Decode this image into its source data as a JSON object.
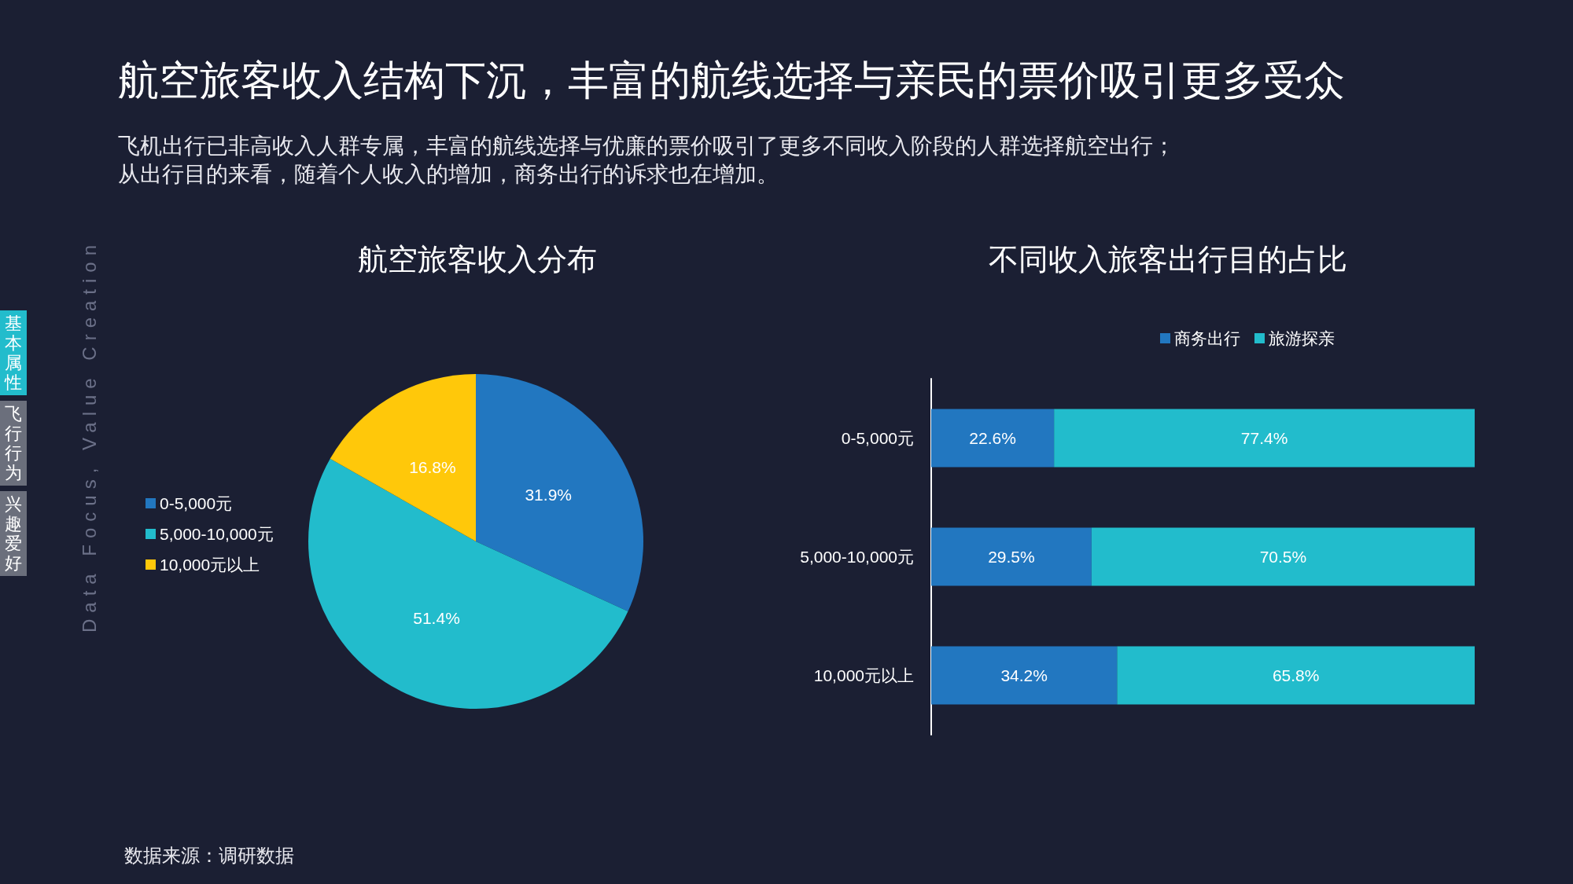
{
  "chart_data": [
    {
      "type": "other",
      "title": "航空旅客收入结构下沉，丰富的航线选择与亲民的票价吸引更多受众",
      "subtitle": "飞机出行已非高收入人群专属，丰富的航线选择与优廉的票价吸引了更多不同收入阶段的人群选择航空出行；",
      "annotations": [
        "从出行目的来看，随着个人收入的增加，商务出行的诉求也在增加。",
        "Data Focus, Value Creation",
        "基本属性",
        "飞行行为",
        "兴趣爱好",
        "数据来源：调研数据"
      ]
    },
    {
      "type": "pie",
      "title": "航空旅客收入分布",
      "categories": [
        "0-5,000元",
        "5,000-10,000元",
        "10,000元以上"
      ],
      "values": [
        31.9,
        51.4,
        16.8
      ],
      "colors": [
        "#2277c0",
        "#22bccc",
        "#ffc80a"
      ],
      "value_labels": [
        "31.9%",
        "51.4%",
        "16.8%"
      ],
      "legend": "left"
    },
    {
      "type": "bar",
      "title": "不同收入旅客出行目的占比",
      "orientation": "horizontal",
      "stacked": true,
      "tick_labels": "y",
      "legend": "top right",
      "categories": [
        "0-5,000元",
        "5,000-10,000元",
        "10,000元以上"
      ],
      "series": [
        {
          "name": "商务出行",
          "color": "#2277c0",
          "values": [
            22.6,
            29.5,
            34.2
          ],
          "value_labels": [
            "22.6%",
            "29.5%",
            "34.2%"
          ]
        },
        {
          "name": "旅游探亲",
          "color": "#22bccc",
          "values": [
            77.4,
            70.5,
            65.8
          ],
          "value_labels": [
            "77.4%",
            "70.5%",
            "65.8%"
          ]
        }
      ]
    }
  ]
}
